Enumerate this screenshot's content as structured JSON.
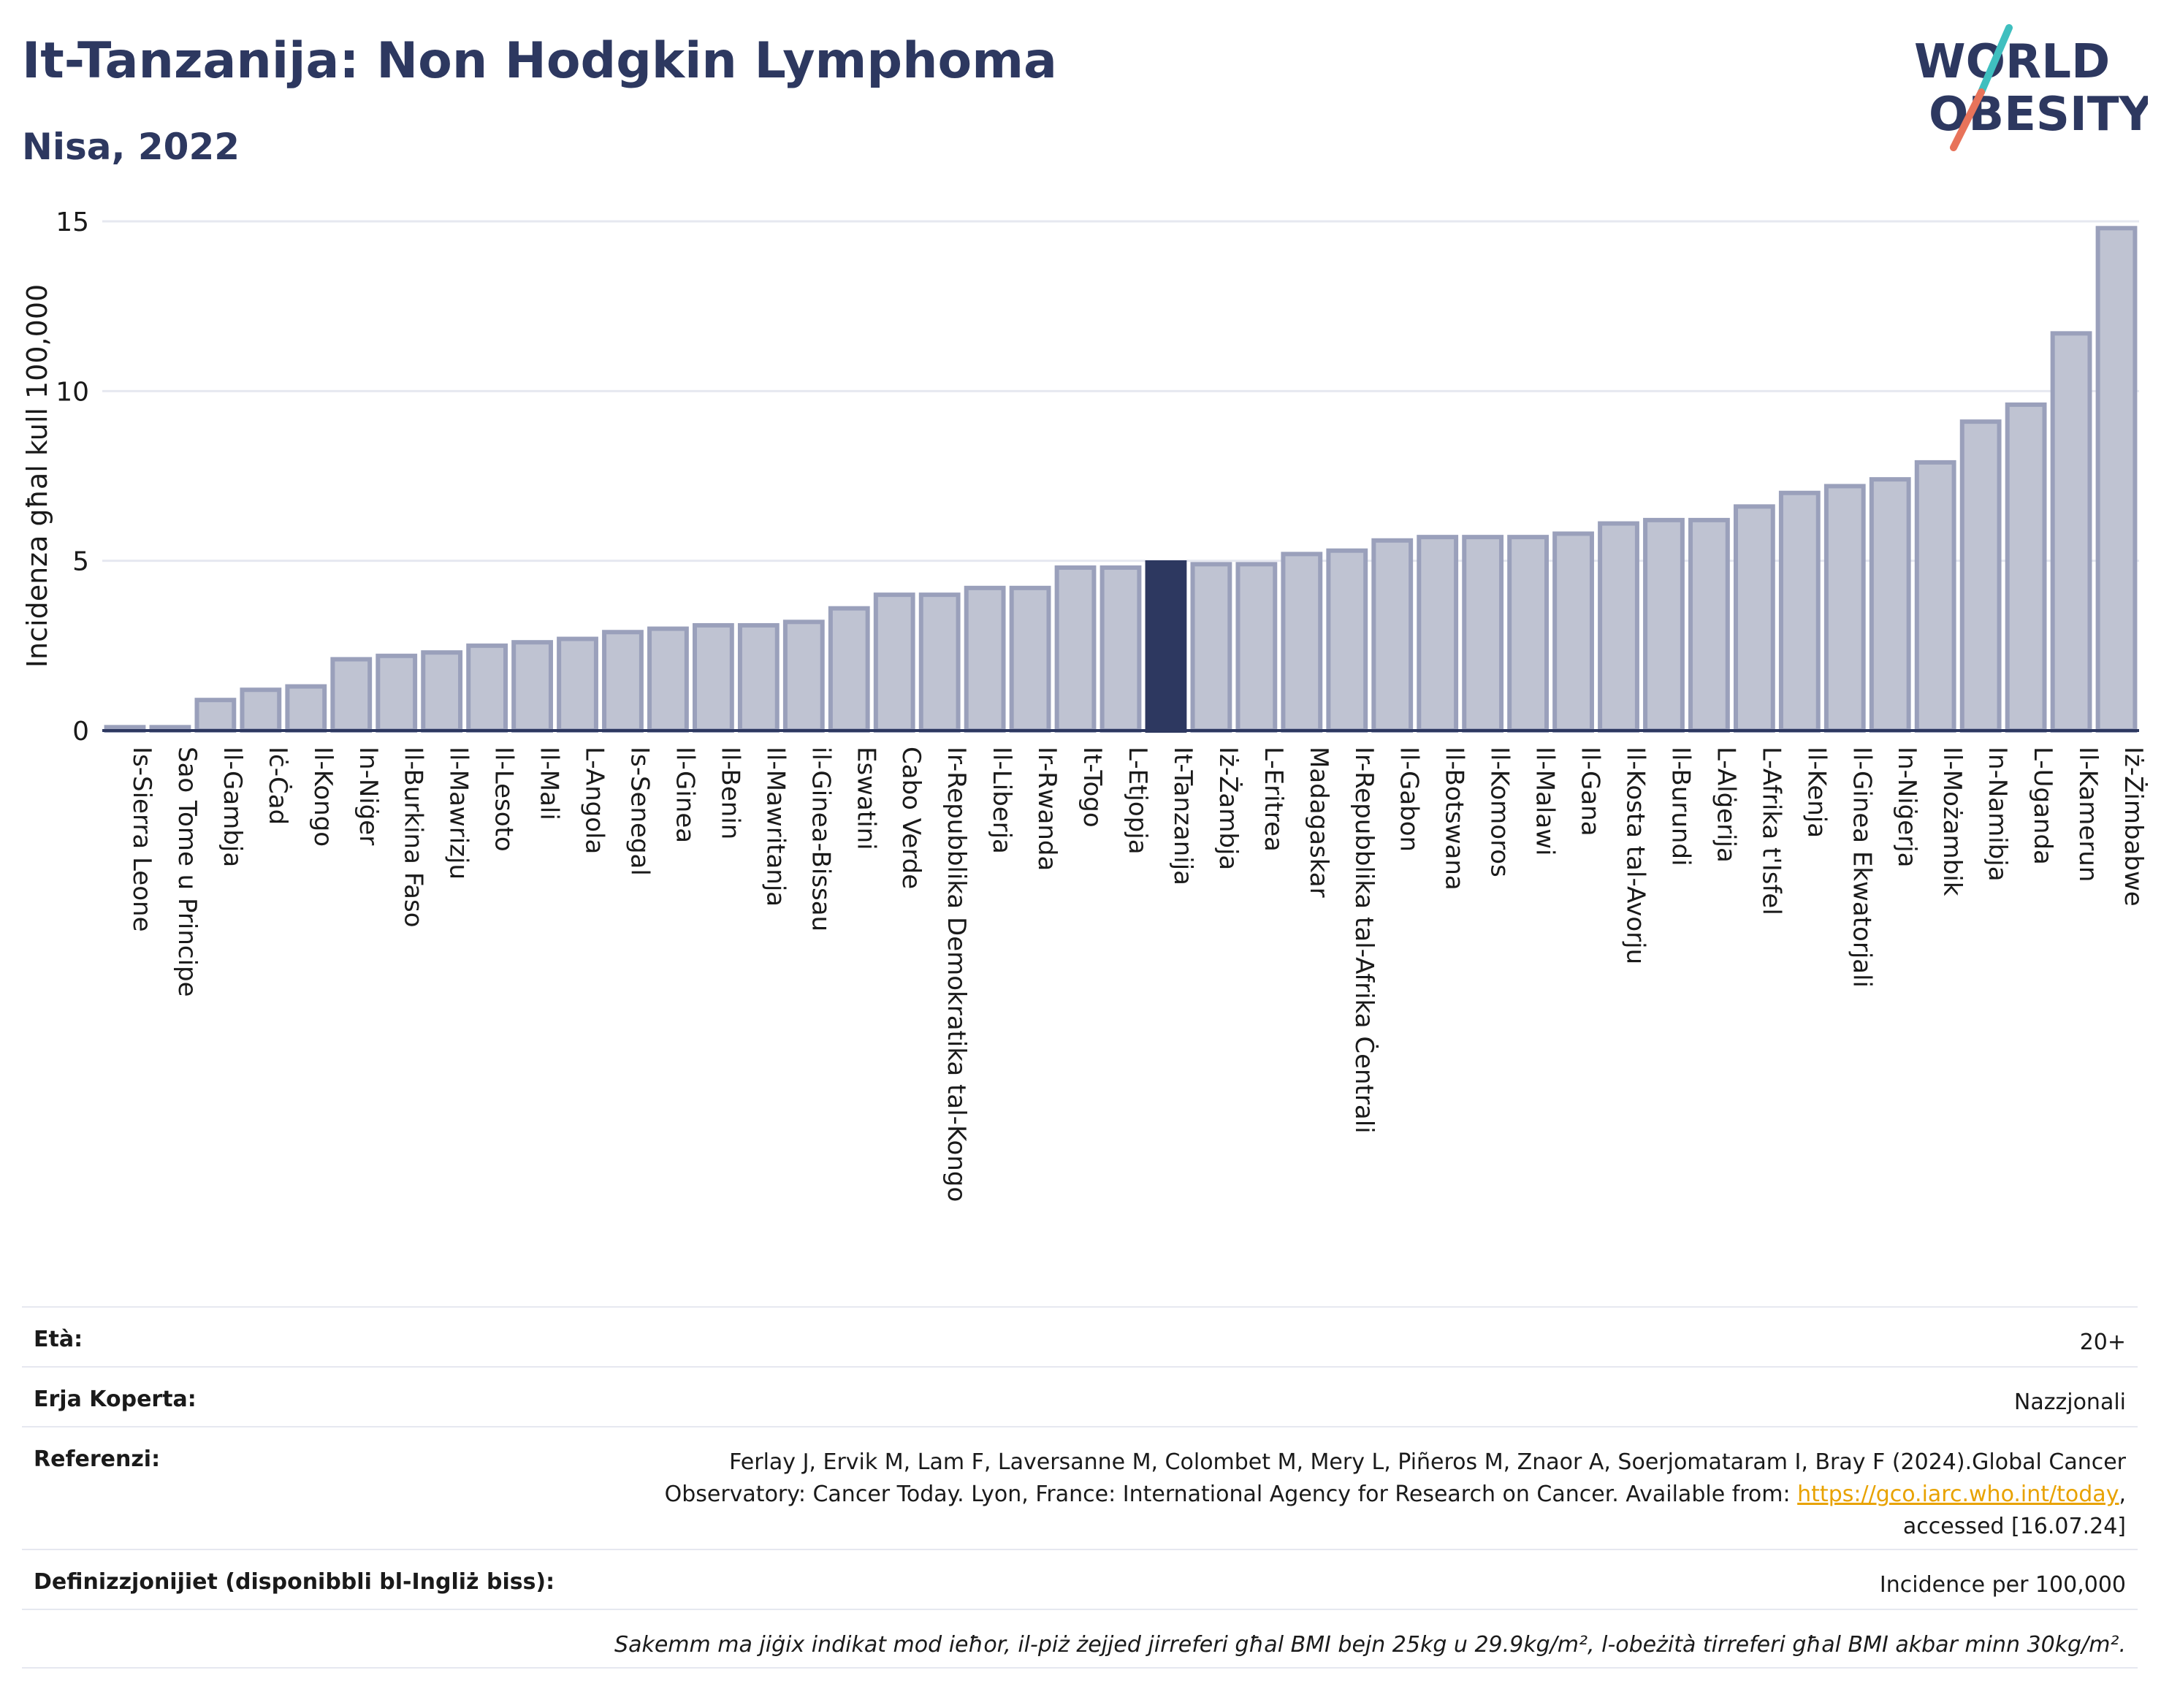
{
  "title": "It-Tanzanija: Non Hodgkin Lymphoma",
  "subtitle": "Nisa, 2022",
  "logo": {
    "line1": "WORLD",
    "line2": "OBESITY",
    "colors": [
      "#2d3860",
      "#e8735a",
      "#3fbfbf"
    ]
  },
  "colors": {
    "bar": "#bfc3d2",
    "bar_stroke": "#9aa0bb",
    "highlight": "#2d3860",
    "grid": "#e6e8f0",
    "axis": "#2d3860"
  },
  "chart_data": {
    "type": "bar",
    "title": "It-Tanzanija: Non Hodgkin Lymphoma",
    "subtitle": "Nisa, 2022",
    "ylabel": "Incidenza għal kull 100,000",
    "xlabel": "",
    "ylim": [
      0,
      15
    ],
    "yticks": [
      0,
      5,
      10,
      15
    ],
    "grid": true,
    "highlight": "It-Tanzanija",
    "categories": [
      "Is-Sierra Leone",
      "Sao Tome u Principe",
      "Il-Gambja",
      "Iċ-Ċad",
      "Il-Kongo",
      "In-Niġer",
      "Il-Burkina Faso",
      "Il-Mawrizju",
      "Il-Lesoto",
      "Il-Mali",
      "L-Angola",
      "Is-Senegal",
      "Il-Ginea",
      "Il-Benin",
      "Il-Mawritanja",
      "il-Ginea-Bissau",
      "Eswatini",
      "Cabo Verde",
      "Ir-Repubblika Demokratika tal-Kongo",
      "Il-Liberja",
      "Ir-Rwanda",
      "It-Togo",
      "L-Etjopja",
      "It-Tanzanija",
      "Iż-Żambja",
      "L-Eritrea",
      "Madagaskar",
      "Ir-Repubblika tal-Afrika Ċentrali",
      "Il-Gabon",
      "Il-Botswana",
      "Il-Komoros",
      "Il-Malawi",
      "Il-Gana",
      "Il-Kosta tal-Avorju",
      "Il-Burundi",
      "L-Alġerija",
      "L-Afrika t'Isfel",
      "Il-Kenja",
      "Il-Ginea Ekwatorjali",
      "In-Niġerja",
      "Il-Możambik",
      "In-Namibja",
      "L-Uganda",
      "Il-Kamerun",
      "Iż-Żimbabwe"
    ],
    "values": [
      0.1,
      0.1,
      0.9,
      1.2,
      1.3,
      2.1,
      2.2,
      2.3,
      2.5,
      2.6,
      2.7,
      2.9,
      3.0,
      3.1,
      3.1,
      3.2,
      3.6,
      4.0,
      4.0,
      4.2,
      4.2,
      4.8,
      4.8,
      4.95,
      4.9,
      4.9,
      5.2,
      5.3,
      5.6,
      5.7,
      5.7,
      5.7,
      5.8,
      6.1,
      6.2,
      6.2,
      6.6,
      7.0,
      7.2,
      7.4,
      7.9,
      9.1,
      9.6,
      11.7,
      14.8
    ]
  },
  "info": {
    "age_label": "Età:",
    "age_value": "20+",
    "area_label": "Erja Koperta:",
    "area_value": "Nazzjonali",
    "ref_label": "Referenzi:",
    "ref_line1": "Ferlay J, Ervik M, Lam F, Laversanne M, Colombet M, Mery L, Piñeros M, Znaor A, Soerjomataram I, Bray F (2024).Global Cancer",
    "ref_line2": "Observatory: Cancer Today. Lyon, France: International Agency for Research on Cancer. Available from: ",
    "ref_link": "https://gco.iarc.who.int/today",
    "ref_line2_end": ",",
    "ref_line3": "accessed [16.07.24]",
    "def_label": "Definizzjonijiet (disponibbli bl-Ingliż biss):",
    "def_value": "Incidence per 100,000",
    "note": "Sakemm ma jiġix indikat mod ieħor, il-piż żejjed jirreferi għal BMI bejn 25kg u 29.9kg/m², l-obeżità tirreferi għal BMI akbar minn 30kg/m²."
  }
}
